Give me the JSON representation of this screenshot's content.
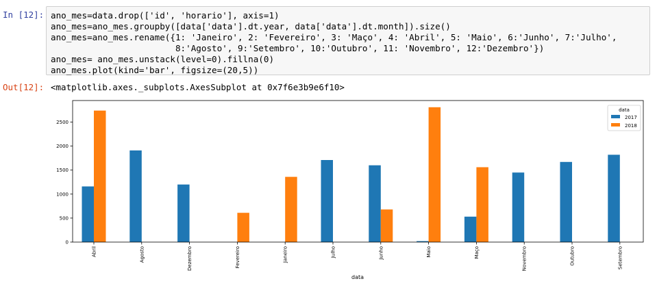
{
  "cell": {
    "in_prompt": "In [12]:",
    "out_prompt": "Out[12]:",
    "code_lines": [
      "ano_mes=data.drop(['id', 'horario'], axis=1)",
      "ano_mes=ano_mes.groupby([data['data'].dt.year, data['data'].dt.month]).size()",
      "ano_mes=ano_mes.rename({1: 'Janeiro', 2: 'Fevereiro', 3: 'Maço', 4: 'Abril', 5: 'Maio', 6:'Junho', 7:'Julho',",
      "                        8:'Agosto', 9:'Setembro', 10:'Outubro', 11: 'Novembro', 12:'Dezembro'})",
      "ano_mes= ano_mes.unstack(level=0).fillna(0)",
      "ano_mes.plot(kind='bar', figsize=(20,5))"
    ],
    "output_text": "<matplotlib.axes._subplots.AxesSubplot at 0x7f6e3b9e6f10>"
  },
  "colors": {
    "series_2017": "#1f77b4",
    "series_2018": "#ff7f0e"
  },
  "chart_data": {
    "type": "bar",
    "title": "",
    "xlabel": "data",
    "ylabel": "",
    "categories": [
      "Abril",
      "Agosto",
      "Dezembro",
      "Fevereiro",
      "Janeiro",
      "Julho",
      "Junho",
      "Maio",
      "Maço",
      "Novembro",
      "Outubro",
      "Setembro"
    ],
    "series": [
      {
        "name": "2017",
        "values": [
          1160,
          1910,
          1200,
          0,
          0,
          1710,
          1600,
          20,
          530,
          1450,
          1670,
          1820
        ]
      },
      {
        "name": "2018",
        "values": [
          2740,
          0,
          0,
          610,
          1360,
          0,
          680,
          2810,
          1560,
          0,
          0,
          0
        ]
      }
    ],
    "legend_title": "data",
    "legend_position": "top-right",
    "ylim": [
      0,
      2950
    ],
    "yticks": [
      0,
      500,
      1000,
      1500,
      2000,
      2500
    ],
    "grid": false
  }
}
